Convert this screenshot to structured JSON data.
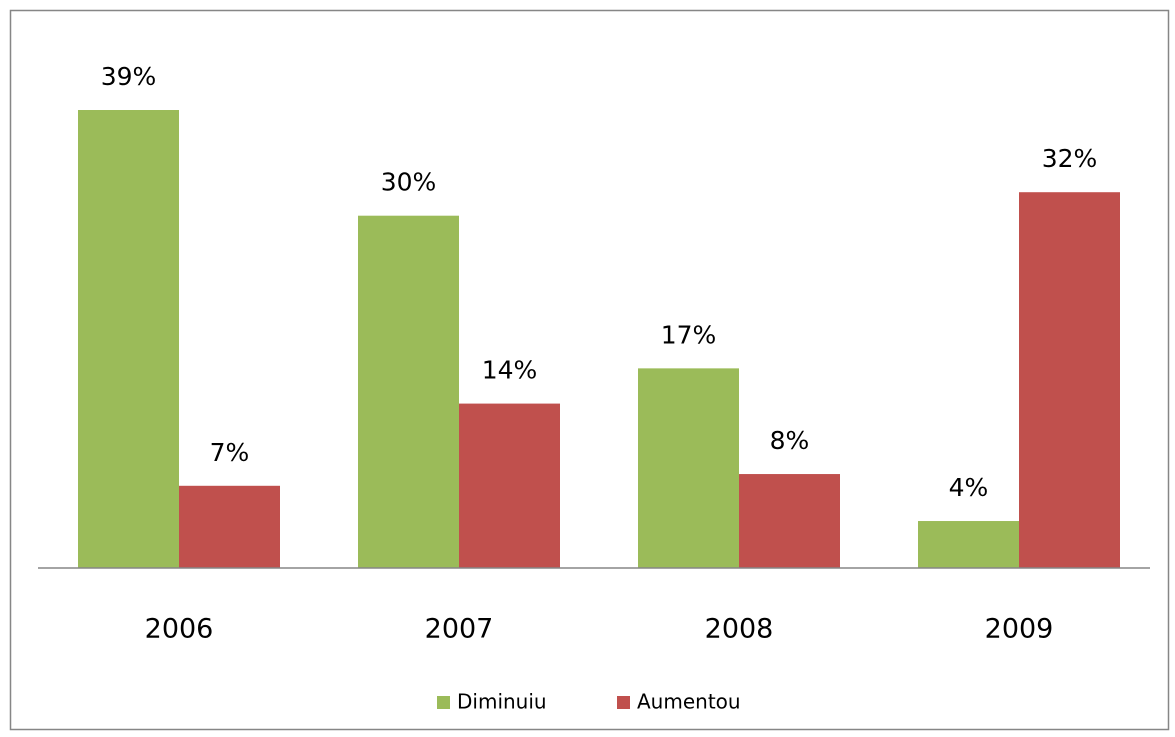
{
  "chart_data": {
    "type": "bar",
    "categories": [
      "2006",
      "2007",
      "2008",
      "2009"
    ],
    "series": [
      {
        "name": "Diminuiu",
        "color": "#9bbb59",
        "values": [
          39,
          30,
          17,
          4
        ],
        "value_labels": [
          "39%",
          "30%",
          "17%",
          "4%"
        ]
      },
      {
        "name": "Aumentou",
        "color": "#c0504d",
        "values": [
          7,
          14,
          8,
          32
        ],
        "value_labels": [
          "7%",
          "14%",
          "8%",
          "32%"
        ]
      }
    ],
    "legend": "bottom"
  }
}
